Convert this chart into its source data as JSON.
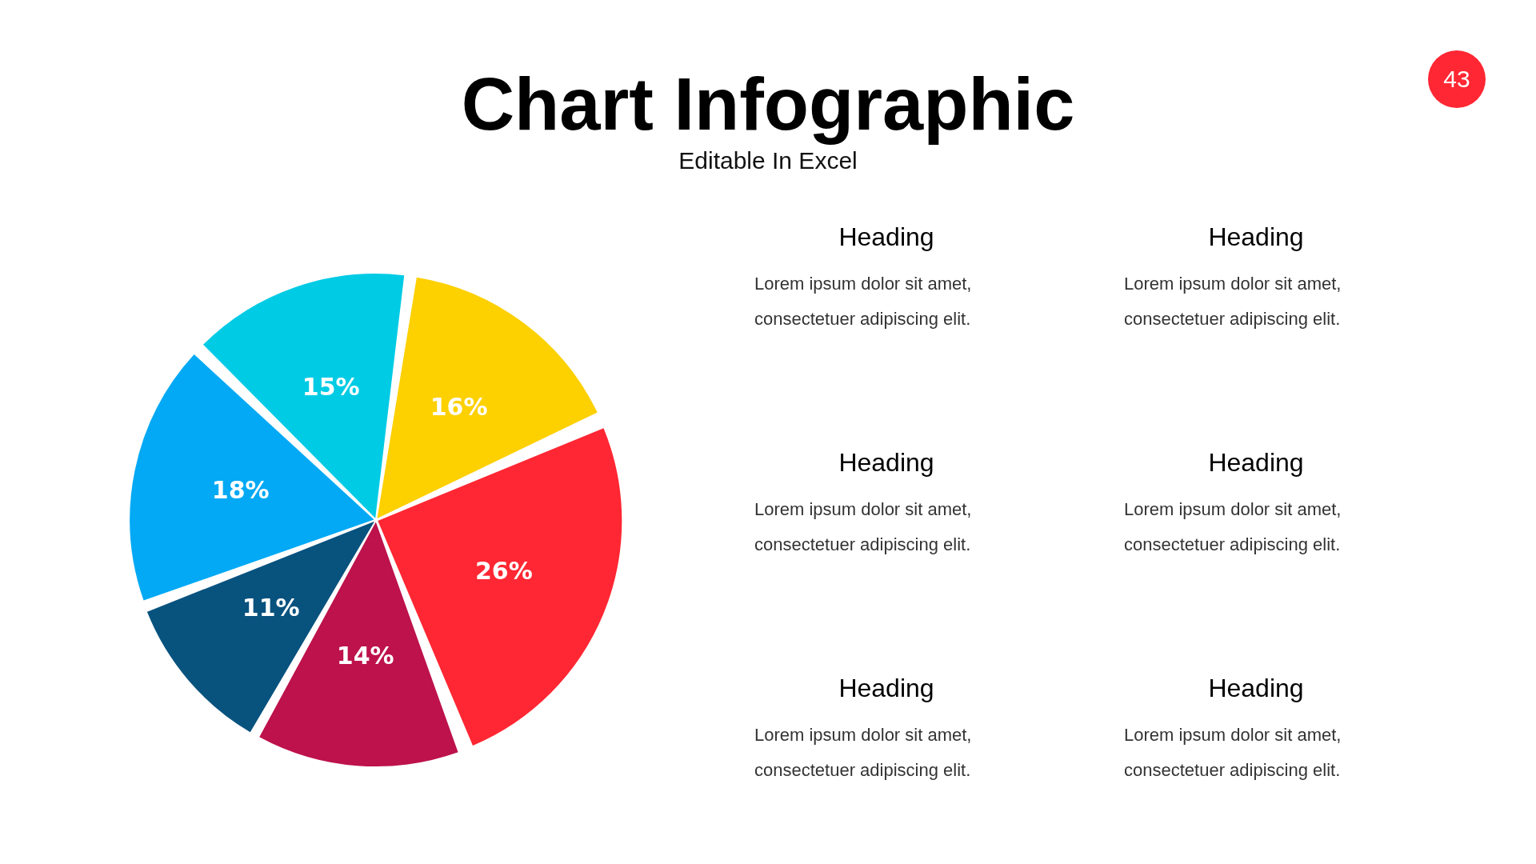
{
  "chart_data": {
    "type": "pie",
    "title": "Chart Infographic",
    "subtitle": "Editable In Excel",
    "categories": [
      null,
      null,
      null,
      null,
      null,
      null
    ],
    "values": [
      16,
      26,
      14,
      11,
      18,
      15
    ],
    "colors": [
      "#fdd000",
      "#ff2733",
      "#bd124b",
      "#08527e",
      "#03a9f4",
      "#00cbe5"
    ],
    "value_labels": [
      "16%",
      "26%",
      "14%",
      "11%",
      "18%",
      "15%"
    ],
    "legend": false,
    "annotations": [
      "43",
      "Heading",
      "Lorem ipsum dolor sit amet, consectetuer adipiscing elit.",
      "Heading",
      "Lorem ipsum dolor sit amet, consectetuer adipiscing elit.",
      "Heading",
      "Lorem ipsum dolor sit amet, consectetuer adipiscing elit.",
      "Heading",
      "Lorem ipsum dolor sit amet, consectetuer adipiscing elit.",
      "Heading",
      "Lorem ipsum dolor sit amet, consectetuer adipiscing elit.",
      "Heading",
      "Lorem ipsum dolor sit amet, consectetuer adipiscing elit."
    ]
  }
}
